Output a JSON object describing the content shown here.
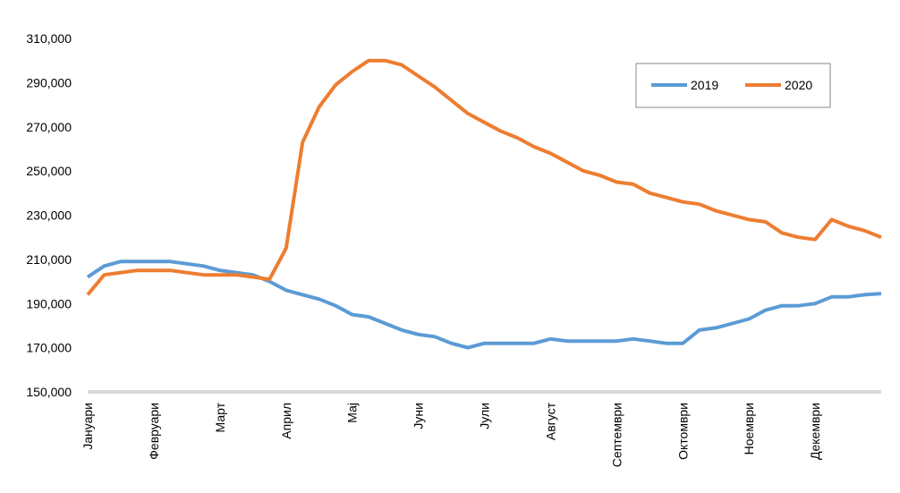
{
  "chart_data": {
    "type": "line",
    "categories": [
      "Јануари",
      null,
      null,
      null,
      "Февруари",
      null,
      null,
      null,
      "Март",
      null,
      null,
      null,
      "Април",
      null,
      null,
      null,
      "Мај",
      null,
      null,
      null,
      "Јуни",
      null,
      null,
      null,
      "Јули",
      null,
      null,
      null,
      "Август",
      null,
      null,
      null,
      "Септември",
      null,
      null,
      null,
      "Октомври",
      null,
      null,
      null,
      "Ноември",
      null,
      null,
      null,
      "Декември",
      null,
      null,
      null,
      null
    ],
    "series": [
      {
        "name": "2019",
        "color": "#5b9bd5",
        "values": [
          202,
          207,
          209,
          209,
          209,
          209,
          208,
          207,
          205,
          204,
          203,
          200,
          196,
          194,
          192,
          189,
          185,
          184,
          181,
          178,
          176,
          175,
          172,
          170,
          172,
          172,
          172,
          172,
          174,
          173,
          173,
          173,
          173,
          174,
          173,
          172,
          172,
          178,
          179,
          181,
          183,
          187,
          189,
          189,
          190,
          193,
          193,
          194,
          194.5
        ]
      },
      {
        "name": "2020",
        "color": "#ed7d31",
        "values": [
          194,
          203,
          204,
          205,
          205,
          205,
          204,
          203,
          203,
          203,
          202,
          201,
          215,
          263,
          279,
          289,
          295,
          300,
          300,
          298,
          293,
          288,
          282,
          276,
          272,
          268,
          265,
          261,
          258,
          254,
          250,
          248,
          245,
          244,
          240,
          238,
          236,
          235,
          232,
          230,
          228,
          227,
          222,
          220,
          219,
          228,
          225,
          223,
          220
        ]
      }
    ],
    "ylim": [
      150,
      310
    ],
    "yticks": [
      {
        "value": 150,
        "label": "150,000"
      },
      {
        "value": 170,
        "label": "170,000"
      },
      {
        "value": 190,
        "label": "190,000"
      },
      {
        "value": 210,
        "label": "210,000"
      },
      {
        "value": 230,
        "label": "230,000"
      },
      {
        "value": 250,
        "label": "250,000"
      },
      {
        "value": 270,
        "label": "270,000"
      },
      {
        "value": 290,
        "label": "290,000"
      },
      {
        "value": 310,
        "label": "310,000"
      }
    ],
    "grid": false,
    "legend": "top-right"
  }
}
